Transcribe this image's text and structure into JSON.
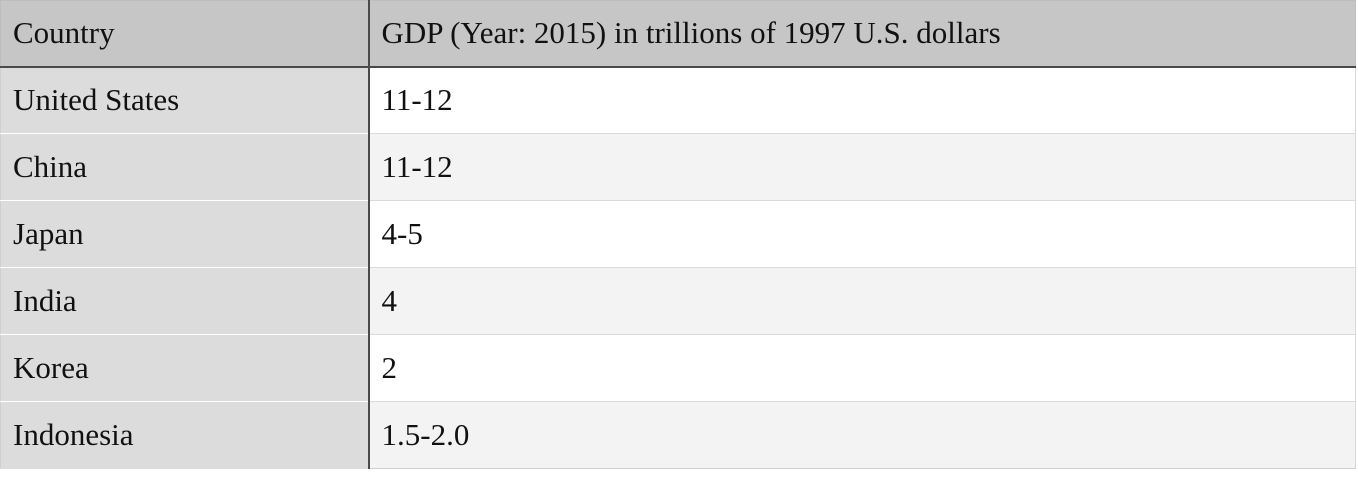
{
  "table": {
    "headers": [
      "Country",
      "GDP (Year: 2015) in trillions of 1997 U.S. dollars"
    ],
    "rows": [
      {
        "country": "United States",
        "gdp": "11-12"
      },
      {
        "country": "China",
        "gdp": "11-12"
      },
      {
        "country": "Japan",
        "gdp": "4-5"
      },
      {
        "country": "India",
        "gdp": "4"
      },
      {
        "country": "Korea",
        "gdp": "2"
      },
      {
        "country": "Indonesia",
        "gdp": "1.5-2.0"
      }
    ]
  },
  "colors": {
    "header_bg": "#c5c6c5",
    "first_column_bg": "#dcdcdc",
    "row_alt_bg": "#f3f3f3",
    "divider": "#4a4a4a"
  }
}
